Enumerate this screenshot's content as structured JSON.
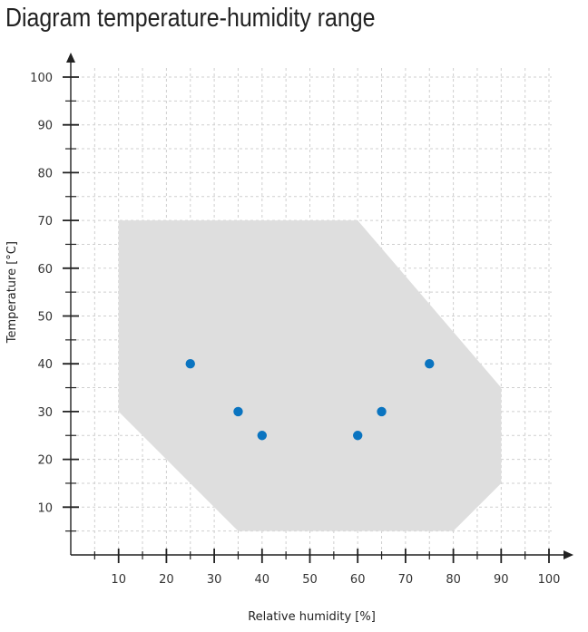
{
  "chart_data": {
    "type": "scatter",
    "title": "Diagram temperature-humidity range",
    "xlabel": "Relative humidity [%]",
    "ylabel": "Temperature [°C]",
    "xlim": [
      0,
      100
    ],
    "ylim": [
      0,
      100
    ],
    "x_ticks": [
      10,
      20,
      30,
      40,
      50,
      60,
      70,
      80,
      90,
      100
    ],
    "y_ticks": [
      10,
      20,
      30,
      40,
      50,
      60,
      70,
      80,
      90,
      100
    ],
    "grid": true,
    "region": {
      "type": "area",
      "color": "#dedede",
      "points": [
        [
          10,
          70
        ],
        [
          60,
          70
        ],
        [
          90,
          35
        ],
        [
          90,
          15
        ],
        [
          80,
          5
        ],
        [
          35,
          5
        ],
        [
          10,
          30
        ]
      ]
    },
    "series": [
      {
        "color": "#0a74c0",
        "x": [
          25,
          35,
          40,
          60,
          65,
          75
        ],
        "y": [
          40,
          30,
          25,
          25,
          30,
          40
        ]
      }
    ]
  }
}
